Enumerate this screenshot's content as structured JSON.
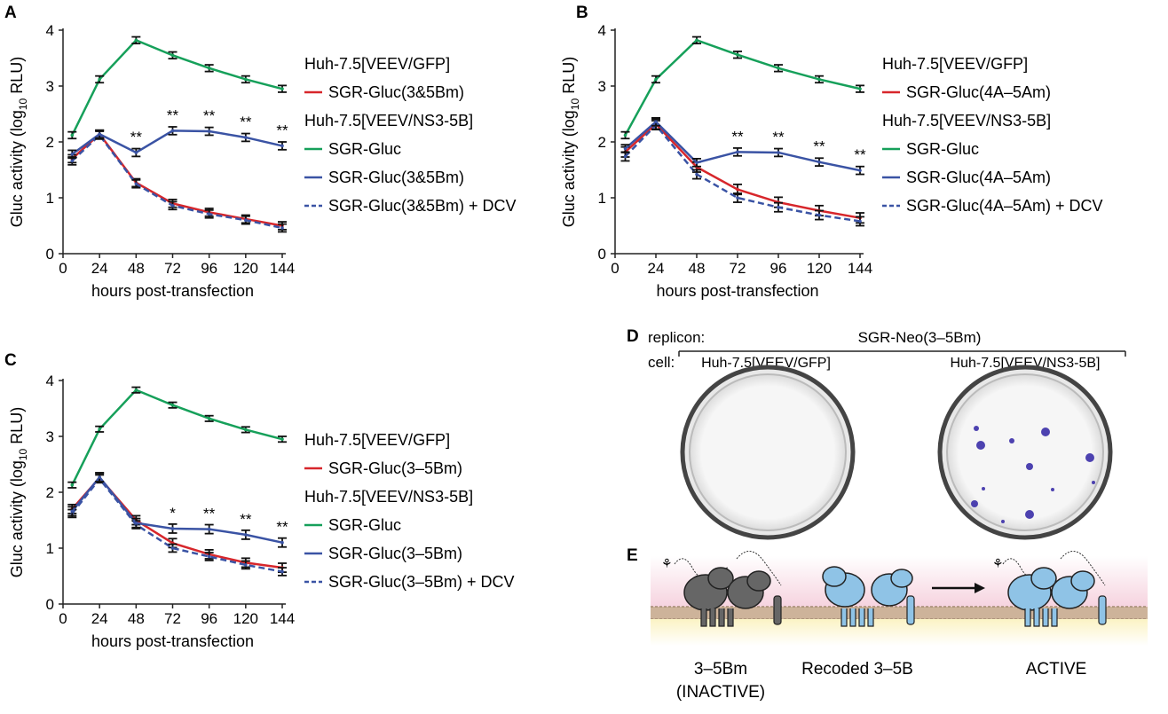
{
  "panel_letters": {
    "a": "A",
    "b": "B",
    "c": "C",
    "d": "D",
    "e": "E"
  },
  "chart_data": [
    {
      "id": "A",
      "type": "line",
      "xlabel": "hours post-transfection",
      "ylabel": "Gluc activity (log",
      "ylabel_sub": "10",
      "ylabel_unit": " RLU)",
      "x": [
        6,
        24,
        48,
        72,
        96,
        120,
        144
      ],
      "xticks": [
        0,
        24,
        48,
        72,
        96,
        120,
        144
      ],
      "yticks": [
        0,
        1,
        2,
        3,
        4
      ],
      "xlim": [
        0,
        144
      ],
      "ylim": [
        0,
        4
      ],
      "legend": {
        "header1": "Huh-7.5[VEEV/GFP]",
        "header2": "Huh-7.5[VEEV/NS3-5B]"
      },
      "series": [
        {
          "name": "SGR-Gluc(3&5Bm)",
          "color": "#d7262b",
          "dash": false,
          "group": 1,
          "values": [
            1.7,
            2.14,
            1.27,
            0.9,
            0.74,
            0.62,
            0.5
          ],
          "err": 0.07
        },
        {
          "name": "SGR-Gluc",
          "color": "#16a05a",
          "dash": false,
          "group": 2,
          "values": [
            2.12,
            3.12,
            3.82,
            3.55,
            3.32,
            3.12,
            2.95
          ],
          "err": 0.06
        },
        {
          "name": "SGR-Gluc(3&5Bm)",
          "color": "#3a53a4",
          "dash": false,
          "group": 2,
          "values": [
            1.78,
            2.14,
            1.81,
            2.2,
            2.19,
            2.08,
            1.93
          ],
          "err": 0.07
        },
        {
          "name": "SGR-Gluc(3&5Bm) + DCV",
          "color": "#3a53a4",
          "dash": true,
          "group": 2,
          "values": [
            1.66,
            2.12,
            1.25,
            0.86,
            0.71,
            0.6,
            0.46
          ],
          "err": 0.07
        }
      ],
      "annotations": [
        {
          "x": 48,
          "y": 1.81,
          "text": "**"
        },
        {
          "x": 72,
          "y": 2.2,
          "text": "**"
        },
        {
          "x": 96,
          "y": 2.19,
          "text": "**"
        },
        {
          "x": 120,
          "y": 2.08,
          "text": "**"
        },
        {
          "x": 144,
          "y": 1.93,
          "text": "**"
        }
      ]
    },
    {
      "id": "B",
      "type": "line",
      "xlabel": "hours post-transfection",
      "ylabel": "Gluc activity (log",
      "ylabel_sub": "10",
      "ylabel_unit": " RLU)",
      "x": [
        6,
        24,
        48,
        72,
        96,
        120,
        144
      ],
      "xticks": [
        0,
        24,
        48,
        72,
        96,
        120,
        144
      ],
      "yticks": [
        0,
        1,
        2,
        3,
        4
      ],
      "xlim": [
        0,
        144
      ],
      "ylim": [
        0,
        4
      ],
      "legend": {
        "header1": "Huh-7.5[VEEV/GFP]",
        "header2": "Huh-7.5[VEEV/NS3-5B]"
      },
      "series": [
        {
          "name": "SGR-Gluc(4A–5Am)",
          "color": "#d7262b",
          "dash": false,
          "group": 1,
          "values": [
            1.82,
            2.32,
            1.55,
            1.15,
            0.92,
            0.77,
            0.64
          ],
          "err": 0.09
        },
        {
          "name": "SGR-Gluc",
          "color": "#16a05a",
          "dash": false,
          "group": 2,
          "values": [
            2.12,
            3.12,
            3.82,
            3.56,
            3.32,
            3.12,
            2.95
          ],
          "err": 0.06
        },
        {
          "name": "SGR-Gluc(4A–5Am)",
          "color": "#3a53a4",
          "dash": false,
          "group": 2,
          "values": [
            1.88,
            2.36,
            1.63,
            1.82,
            1.81,
            1.64,
            1.49
          ],
          "err": 0.07
        },
        {
          "name": "SGR-Gluc(4A–5Am) + DCV",
          "color": "#3a53a4",
          "dash": true,
          "group": 2,
          "values": [
            1.74,
            2.3,
            1.42,
            1.0,
            0.83,
            0.69,
            0.58
          ],
          "err": 0.08
        }
      ],
      "annotations": [
        {
          "x": 72,
          "y": 1.82,
          "text": "**"
        },
        {
          "x": 96,
          "y": 1.81,
          "text": "**"
        },
        {
          "x": 120,
          "y": 1.64,
          "text": "**"
        },
        {
          "x": 144,
          "y": 1.49,
          "text": "**"
        }
      ]
    },
    {
      "id": "C",
      "type": "line",
      "xlabel": "hours post-transfection",
      "ylabel": "Gluc activity (log",
      "ylabel_sub": "10",
      "ylabel_unit": " RLU)",
      "x": [
        6,
        24,
        48,
        72,
        96,
        120,
        144
      ],
      "xticks": [
        0,
        24,
        48,
        72,
        96,
        120,
        144
      ],
      "yticks": [
        0,
        1,
        2,
        3,
        4
      ],
      "xlim": [
        0,
        144
      ],
      "ylim": [
        0,
        4
      ],
      "legend": {
        "header1": "Huh-7.5[VEEV/GFP]",
        "header2": "Huh-7.5[VEEV/NS3-5B]"
      },
      "series": [
        {
          "name": "SGR-Gluc(3–5Bm)",
          "color": "#d7262b",
          "dash": false,
          "group": 1,
          "values": [
            1.7,
            2.26,
            1.5,
            1.09,
            0.89,
            0.74,
            0.65
          ],
          "err": 0.08
        },
        {
          "name": "SGR-Gluc",
          "color": "#16a05a",
          "dash": false,
          "group": 2,
          "values": [
            2.13,
            3.13,
            3.83,
            3.56,
            3.32,
            3.12,
            2.95
          ],
          "err": 0.05
        },
        {
          "name": "SGR-Gluc(3–5Bm)",
          "color": "#3a53a4",
          "dash": false,
          "group": 2,
          "values": [
            1.66,
            2.27,
            1.45,
            1.35,
            1.34,
            1.24,
            1.1
          ],
          "err": 0.08
        },
        {
          "name": "SGR-Gluc(3–5Bm) + DCV",
          "color": "#3a53a4",
          "dash": true,
          "group": 2,
          "values": [
            1.62,
            2.24,
            1.42,
            1.0,
            0.85,
            0.7,
            0.58
          ],
          "err": 0.07
        }
      ],
      "annotations": [
        {
          "x": 72,
          "y": 1.35,
          "text": "*"
        },
        {
          "x": 96,
          "y": 1.34,
          "text": "**"
        },
        {
          "x": 120,
          "y": 1.24,
          "text": "**"
        },
        {
          "x": 144,
          "y": 1.1,
          "text": "**"
        }
      ]
    }
  ],
  "panel_d": {
    "replicon_label": "replicon:",
    "replicon_value": "SGR-Neo(3–5Bm)",
    "cell_label": "cell:",
    "cell_left": "Huh-7.5[VEEV/GFP]",
    "cell_right": "Huh-7.5[VEEV/NS3-5B]",
    "colony_color": "#3b2fa8"
  },
  "panel_e": {
    "label_left_1": "3–5Bm",
    "label_left_2": "(INACTIVE)",
    "label_mid": "Recoded 3–5B",
    "label_right": "ACTIVE",
    "inactive_color": "#666666",
    "active_color": "#8fc3e6"
  }
}
